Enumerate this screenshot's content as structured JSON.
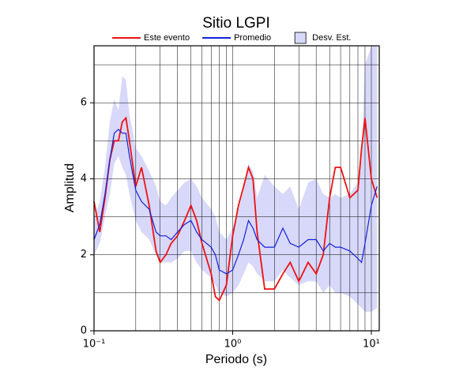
{
  "chart_data": {
    "type": "line",
    "title": "Sitio LGPI",
    "x_label": "Periodo (s)",
    "y_label": "Amplitud",
    "xscale": "log",
    "grid": true,
    "legend": "top",
    "xlim": [
      0.1,
      11.4
    ],
    "ylim": [
      0,
      7.5
    ],
    "xticks": [
      {
        "value": 0.1,
        "label": "10⁻¹"
      },
      {
        "value": 1,
        "label": "10⁰"
      },
      {
        "value": 10,
        "label": "10¹"
      }
    ],
    "xminor": [
      0.2,
      0.3,
      0.4,
      0.5,
      0.6,
      0.7,
      0.8,
      0.9,
      2,
      3,
      4,
      5,
      6,
      7,
      8,
      9
    ],
    "yticks": [
      0,
      2,
      4,
      6
    ],
    "yminor": [
      1,
      3,
      5,
      7
    ],
    "x": [
      0.1,
      0.11,
      0.12,
      0.13,
      0.14,
      0.15,
      0.16,
      0.17,
      0.18,
      0.2,
      0.22,
      0.25,
      0.28,
      0.3,
      0.33,
      0.36,
      0.4,
      0.45,
      0.5,
      0.55,
      0.6,
      0.7,
      0.75,
      0.8,
      0.9,
      1.0,
      1.1,
      1.2,
      1.3,
      1.4,
      1.5,
      1.7,
      2.0,
      2.3,
      2.6,
      3.0,
      3.5,
      4.0,
      4.5,
      5.0,
      5.5,
      6.0,
      7.0,
      8.0,
      8.5,
      9.0,
      10,
      11
    ],
    "band": {
      "name": "Desv. Est.",
      "color": "#d8d8fa",
      "upper": [
        3.0,
        3.4,
        4.3,
        5.5,
        6.1,
        5.8,
        6.7,
        6.6,
        5.7,
        4.8,
        4.6,
        4.2,
        3.8,
        3.4,
        3.3,
        3.5,
        3.7,
        3.9,
        4.0,
        3.8,
        3.5,
        3.2,
        3.0,
        2.6,
        2.4,
        2.7,
        3.2,
        3.7,
        4.4,
        4.2,
        3.5,
        4.1,
        3.8,
        3.6,
        3.8,
        3.2,
        3.9,
        4.0,
        3.6,
        3.5,
        3.6,
        3.5,
        3.6,
        3.9,
        4.6,
        7.0,
        7.5,
        7.5
      ],
      "lower": [
        2.0,
        2.3,
        3.0,
        3.6,
        4.4,
        4.6,
        4.3,
        4.1,
        3.6,
        2.9,
        2.6,
        2.4,
        2.0,
        1.8,
        1.8,
        1.8,
        1.9,
        2.1,
        2.1,
        1.8,
        1.6,
        1.4,
        1.2,
        1.0,
        0.9,
        1.0,
        1.2,
        1.5,
        1.8,
        1.7,
        1.5,
        1.3,
        1.3,
        1.6,
        1.4,
        1.2,
        1.3,
        1.3,
        1.0,
        1.2,
        1.0,
        1.0,
        0.9,
        0.7,
        0.6,
        0.5,
        0.5,
        0.6
      ]
    },
    "series": [
      {
        "name": "Este evento",
        "color": "#ee1111",
        "values": [
          3.4,
          2.6,
          3.5,
          4.5,
          5.0,
          5.0,
          5.5,
          5.6,
          5.0,
          3.8,
          4.3,
          3.3,
          2.1,
          1.8,
          2.0,
          2.3,
          2.5,
          2.9,
          3.3,
          2.9,
          2.3,
          1.5,
          0.9,
          0.8,
          1.2,
          2.5,
          3.3,
          3.8,
          4.3,
          4.0,
          2.6,
          1.1,
          1.1,
          1.5,
          1.8,
          1.3,
          1.8,
          1.5,
          2.0,
          3.5,
          4.3,
          4.3,
          3.5,
          3.7,
          4.8,
          5.6,
          4.0,
          3.5
        ]
      },
      {
        "name": "Promedio",
        "color": "#1122dd",
        "values": [
          2.4,
          2.8,
          3.6,
          4.5,
          5.2,
          5.3,
          5.2,
          5.2,
          4.6,
          3.7,
          3.4,
          3.2,
          2.6,
          2.5,
          2.5,
          2.4,
          2.6,
          2.8,
          2.9,
          2.6,
          2.4,
          2.2,
          2.0,
          1.6,
          1.5,
          1.6,
          2.0,
          2.4,
          2.9,
          2.7,
          2.4,
          2.2,
          2.2,
          2.7,
          2.3,
          2.2,
          2.4,
          2.4,
          2.1,
          2.3,
          2.2,
          2.2,
          2.1,
          1.9,
          1.8,
          2.3,
          3.3,
          3.8
        ]
      }
    ]
  }
}
